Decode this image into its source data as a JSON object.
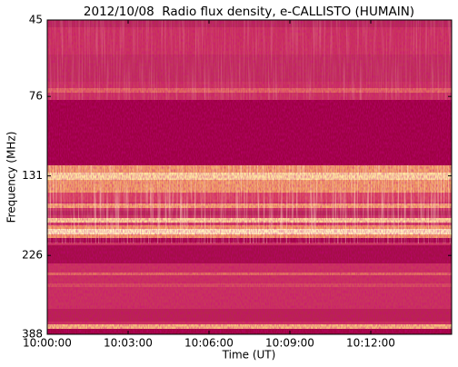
{
  "chart_data": {
    "type": "heatmap",
    "title": "2012/10/08  Radio flux density, e-CALLISTO (HUMAIN)",
    "xlabel": "Time (UT)",
    "ylabel": "Frequency (MHz)",
    "xlim": [
      "10:00:00",
      "10:15:00"
    ],
    "xticks": [
      "10:00:00",
      "10:03:00",
      "10:06:00",
      "10:09:00",
      "10:12:00"
    ],
    "ylim": [
      45,
      388
    ],
    "yticks": [
      45,
      76,
      131,
      226,
      388
    ],
    "yscale": "log",
    "yinverted": true
  }
}
